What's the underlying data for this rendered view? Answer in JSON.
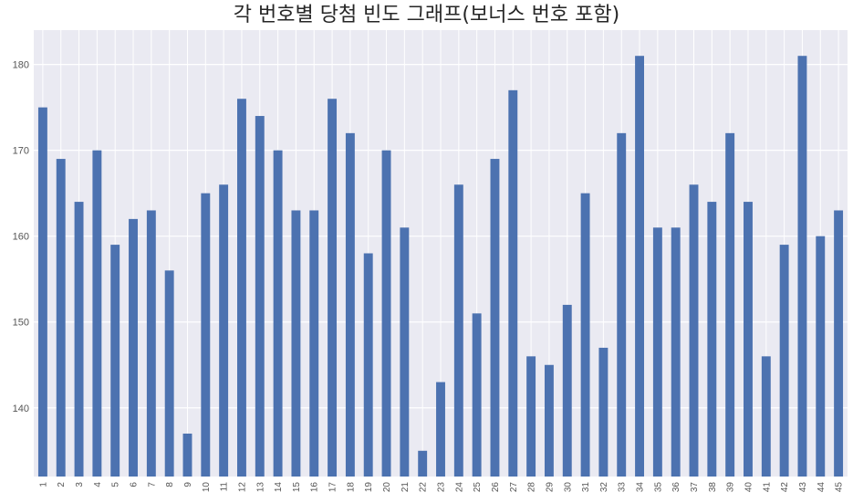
{
  "chart_data": {
    "type": "bar",
    "title": "각 번호별 당첨 빈도 그래프(보너스 번호 포함)",
    "xlabel": "",
    "ylabel": "",
    "ylim": [
      132,
      184
    ],
    "yticks": [
      140,
      150,
      160,
      170,
      180
    ],
    "grid": true,
    "categories": [
      "1",
      "2",
      "3",
      "4",
      "5",
      "6",
      "7",
      "8",
      "9",
      "10",
      "11",
      "12",
      "13",
      "14",
      "15",
      "16",
      "17",
      "18",
      "19",
      "20",
      "21",
      "22",
      "23",
      "24",
      "25",
      "26",
      "27",
      "28",
      "29",
      "30",
      "31",
      "32",
      "33",
      "34",
      "35",
      "36",
      "37",
      "38",
      "39",
      "40",
      "41",
      "42",
      "43",
      "44",
      "45"
    ],
    "values": [
      175,
      169,
      164,
      170,
      159,
      162,
      163,
      156,
      137,
      165,
      166,
      176,
      174,
      170,
      163,
      163,
      176,
      172,
      158,
      170,
      161,
      135,
      143,
      166,
      151,
      169,
      177,
      146,
      145,
      152,
      165,
      147,
      172,
      181,
      161,
      161,
      166,
      164,
      172,
      164,
      146,
      159,
      181,
      160,
      163
    ],
    "bar_color": "#4c72b0",
    "background_color": "#eaeaf2",
    "grid_color": "#ffffff"
  }
}
